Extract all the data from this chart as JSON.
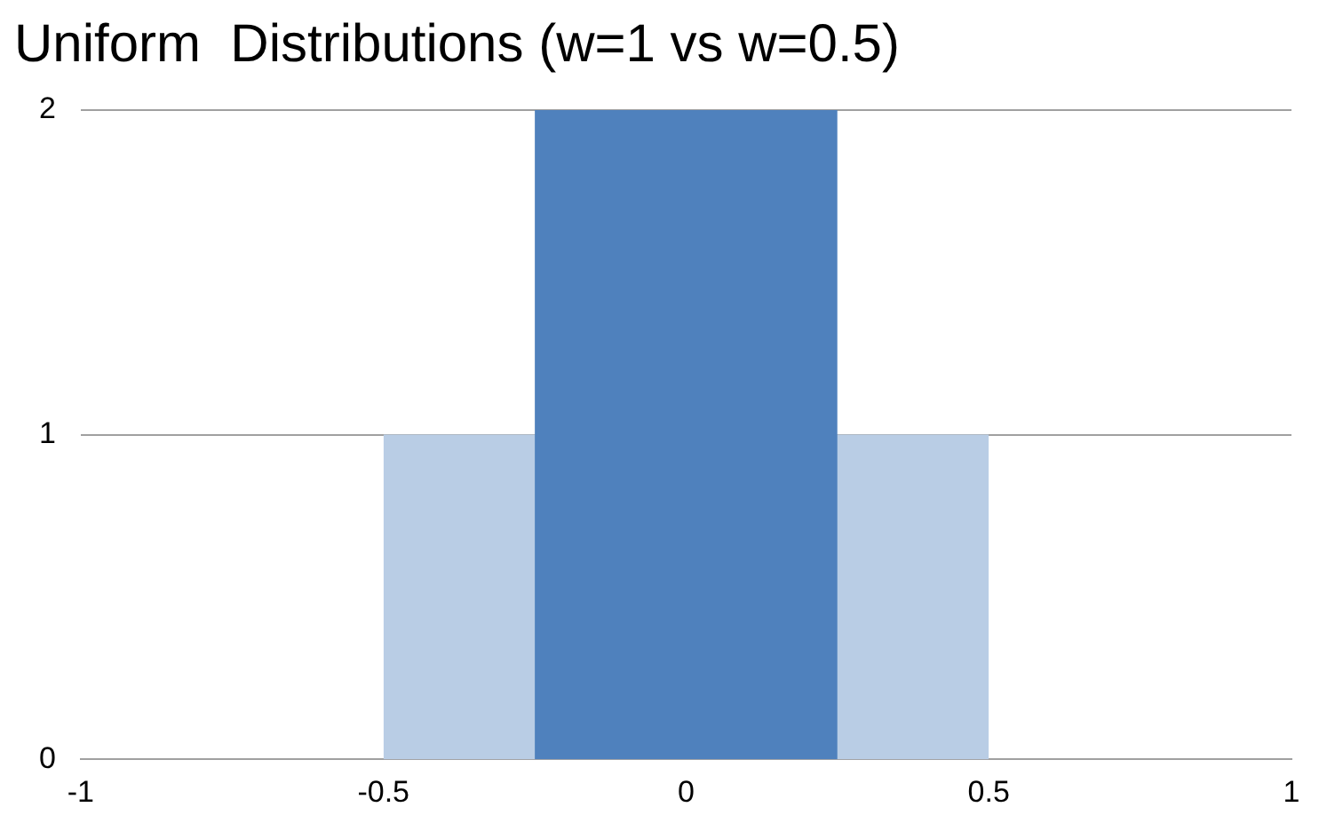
{
  "chart_data": {
    "type": "area",
    "title": "Uniform  Distributions (w=1 vs w=0.5)",
    "series": [
      {
        "color": "#b9cde5",
        "x": [
          -0.5,
          -0.5,
          0.5,
          0.5
        ],
        "values": [
          0,
          1,
          1,
          0
        ]
      },
      {
        "color": "#4f81bd",
        "x": [
          -0.25,
          -0.25,
          0.25,
          0.25
        ],
        "values": [
          0,
          2,
          2,
          0
        ]
      }
    ],
    "xlim": [
      -1,
      1
    ],
    "xticks": [
      -1,
      -0.5,
      0,
      0.5,
      1
    ],
    "ylim": [
      0,
      2
    ],
    "yticks": [
      0,
      1,
      2
    ],
    "grid": "y",
    "legend": false
  }
}
